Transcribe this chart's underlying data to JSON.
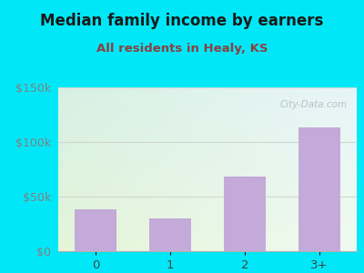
{
  "title": "Median family income by earners",
  "subtitle": "All residents in Healy, KS",
  "categories": [
    "0",
    "1",
    "2",
    "3+"
  ],
  "values": [
    38000,
    30000,
    68000,
    113000
  ],
  "bar_color": "#c4aad8",
  "ylim": [
    0,
    150000
  ],
  "yticks": [
    0,
    50000,
    100000,
    150000
  ],
  "background_outer": "#00e8f8",
  "plot_bg_tl": "#d8f0e4",
  "plot_bg_tr": "#e8f5f8",
  "plot_bg_bl": "#e4f5d8",
  "plot_bg_br": "#f0faf0",
  "title_color": "#1a1a1a",
  "subtitle_color": "#8b4040",
  "watermark_text": "City-Data.com",
  "watermark_color": "#b0b8c0",
  "title_fontsize": 12,
  "subtitle_fontsize": 9.5,
  "tick_label_color": "#808080",
  "grid_color": "#d0d8cc",
  "bottom_spine_color": "#b0b0b0"
}
